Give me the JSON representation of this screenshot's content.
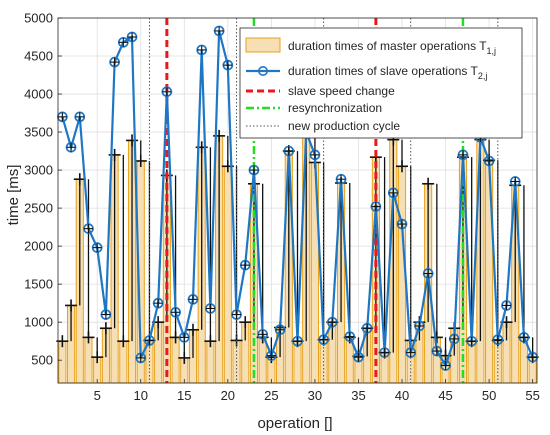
{
  "chart_data": {
    "type": "bar+line",
    "xlabel": "operation []",
    "ylabel": "time [ms]",
    "xlim": [
      0.5,
      55.5
    ],
    "ylim": [
      200,
      5000
    ],
    "xticks": [
      5,
      10,
      15,
      20,
      25,
      30,
      35,
      40,
      45,
      50,
      55
    ],
    "yticks": [
      500,
      1000,
      1500,
      2000,
      2500,
      3000,
      3500,
      4000,
      4500,
      5000
    ],
    "grid": true,
    "legend_position": "top-right",
    "legend": {
      "master": "duration times of master operations T",
      "master_sub": "1,j",
      "slave": "duration times of slave operations T",
      "slave_sub": "2,j",
      "speed_change": "slave speed change",
      "resync": "resynchronization",
      "cycle": "new production cycle"
    },
    "series": [
      {
        "name": "duration times of master operations T1,j",
        "style": "bar",
        "x": [
          1,
          2,
          3,
          4,
          5,
          6,
          7,
          8,
          9,
          10,
          11,
          12,
          13,
          14,
          15,
          16,
          17,
          18,
          19,
          20,
          21,
          22,
          23,
          24,
          25,
          26,
          27,
          28,
          29,
          30,
          31,
          32,
          33,
          34,
          35,
          36,
          37,
          38,
          39,
          40,
          41,
          42,
          43,
          44,
          45,
          46,
          47,
          48,
          49,
          50,
          51,
          52,
          53,
          54,
          55
        ],
        "values": [
          750,
          1220,
          2880,
          800,
          540,
          920,
          3200,
          750,
          3390,
          3120,
          760,
          1000,
          2930,
          800,
          530,
          900,
          3300,
          750,
          3450,
          3050,
          760,
          1000,
          2820,
          800,
          540,
          930,
          3250,
          750,
          3480,
          3100,
          770,
          1000,
          2830,
          800,
          550,
          920,
          3170,
          600,
          3400,
          3050,
          760,
          1000,
          2820,
          800,
          560,
          920,
          3170,
          750,
          3400,
          3130,
          760,
          1000,
          2800,
          800,
          540
        ]
      },
      {
        "name": "duration times of slave operations T2,j",
        "style": "line",
        "x": [
          1,
          2,
          3,
          4,
          5,
          6,
          7,
          8,
          9,
          10,
          11,
          12,
          13,
          14,
          15,
          16,
          17,
          18,
          19,
          20,
          21,
          22,
          23,
          24,
          25,
          26,
          27,
          28,
          29,
          30,
          31,
          32,
          33,
          34,
          35,
          36,
          37,
          38,
          39,
          40,
          41,
          42,
          43,
          44,
          45,
          46,
          47,
          48,
          49,
          50,
          51,
          52,
          53,
          54,
          55
        ],
        "values": [
          3700,
          3300,
          3700,
          2230,
          1980,
          1100,
          4420,
          4680,
          4750,
          530,
          760,
          1250,
          4030,
          1130,
          800,
          1300,
          4580,
          1180,
          4830,
          4380,
          1100,
          1750,
          3000,
          840,
          560,
          900,
          3250,
          750,
          3500,
          3200,
          770,
          1000,
          2880,
          810,
          540,
          920,
          2520,
          600,
          2700,
          2290,
          600,
          950,
          1640,
          620,
          430,
          780,
          3200,
          750,
          3430,
          3120,
          770,
          1220,
          2850,
          800,
          540
        ]
      }
    ],
    "vlines": {
      "slave_speed_change": [
        13,
        37
      ],
      "resynchronization": [
        23,
        47
      ],
      "new_production_cycle": [
        11,
        21,
        31,
        41,
        51
      ]
    },
    "colors": {
      "master_fill": "#f6dfb4",
      "master_edge": "#e8a21a",
      "slave": "#1f77c4",
      "speed_change": "#e8191c",
      "resync": "#22dd22",
      "cycle": "#555555"
    }
  }
}
